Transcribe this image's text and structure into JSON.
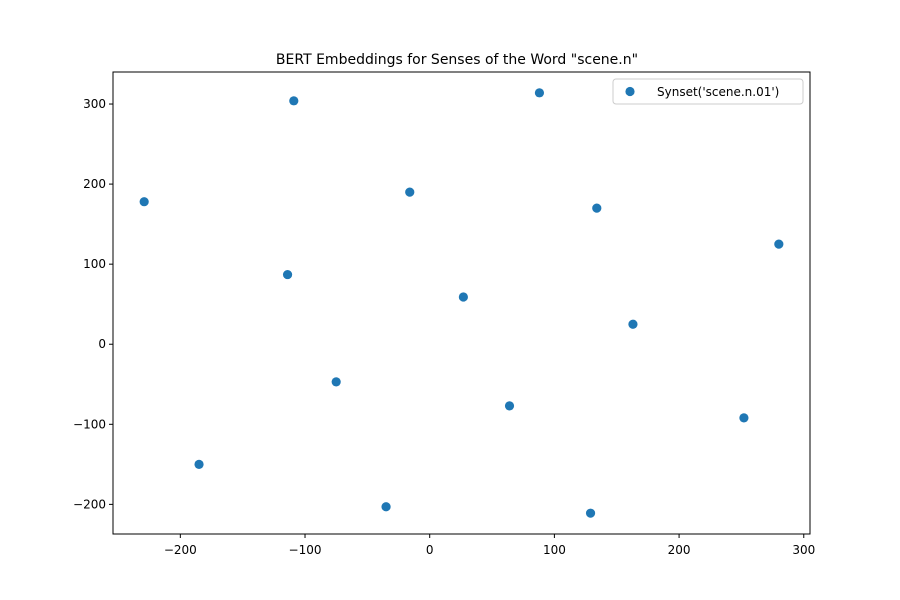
{
  "chart_data": {
    "type": "scatter",
    "title": "BERT Embeddings for Senses of the Word \"scene.n\"",
    "xlabel": "",
    "ylabel": "",
    "xlim": [
      -254,
      305
    ],
    "ylim": [
      -237,
      340
    ],
    "x_ticks": [
      -200,
      -100,
      0,
      100,
      200,
      300
    ],
    "y_ticks": [
      -200,
      -100,
      0,
      100,
      200,
      300
    ],
    "x_tick_labels": [
      "−200",
      "−100",
      "0",
      "100",
      "200",
      "300"
    ],
    "y_tick_labels": [
      "−200",
      "−100",
      "0",
      "100",
      "200",
      "300"
    ],
    "grid": false,
    "legend_position": "top-right",
    "series": [
      {
        "name": "Synset('scene.n.01')",
        "color": "#1f77b4",
        "points": [
          {
            "x": -229,
            "y": 178
          },
          {
            "x": -109,
            "y": 304
          },
          {
            "x": 88,
            "y": 314
          },
          {
            "x": -16,
            "y": 190
          },
          {
            "x": 134,
            "y": 170
          },
          {
            "x": 280,
            "y": 125
          },
          {
            "x": -114,
            "y": 87
          },
          {
            "x": 27,
            "y": 59
          },
          {
            "x": 163,
            "y": 25
          },
          {
            "x": -75,
            "y": -47
          },
          {
            "x": 64,
            "y": -77
          },
          {
            "x": 252,
            "y": -92
          },
          {
            "x": -185,
            "y": -150
          },
          {
            "x": -35,
            "y": -203
          },
          {
            "x": 129,
            "y": -211
          }
        ]
      }
    ]
  }
}
